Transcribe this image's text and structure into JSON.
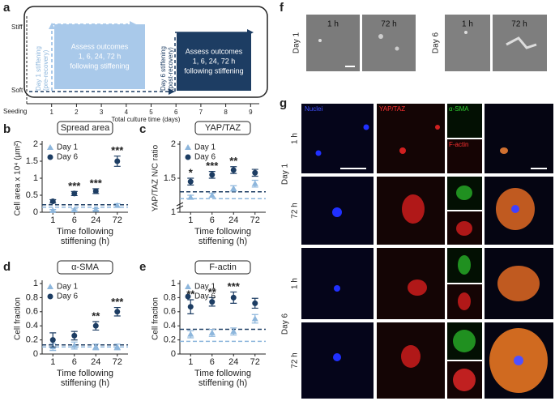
{
  "panel_labels": [
    "a",
    "b",
    "c",
    "d",
    "e",
    "f",
    "g"
  ],
  "panel_a": {
    "stiff": "Stiff",
    "soft": "Soft",
    "seeding": "Seeding",
    "ticks": [
      1,
      2,
      3,
      4,
      5,
      6,
      7,
      8,
      9
    ],
    "xlabel": "Total culture time (days)",
    "day1_label": [
      "Day 1 stiffening",
      "(pre-recovery)"
    ],
    "day1_box": [
      "Assess outcomes",
      "1, 6, 24, 72 h",
      "following stiffening"
    ],
    "day6_label": [
      "Day 6 stiffening",
      "(post-recovery)"
    ],
    "day6_box": [
      "Assess outcomes",
      "1, 6, 24, 72 h",
      "following stiffening"
    ]
  },
  "chart_data": [
    {
      "type": "scatter",
      "title": "Spread area",
      "ylabel": "Cell area x 10⁴ (μm²)",
      "xlabel": [
        "Time following",
        "stiffening (h)"
      ],
      "categories": [
        "1",
        "6",
        "24",
        "72"
      ],
      "ylim": [
        0,
        2
      ],
      "yticks": [
        0,
        0.5,
        1,
        1.5,
        2
      ],
      "y_break": false,
      "legend": "upper left",
      "series": [
        {
          "name": "Day 1",
          "color": "#8db6dc",
          "marker": "triangle",
          "values": [
            0.05,
            0.07,
            0.08,
            0.2
          ],
          "errors": [
            0.03,
            0.03,
            0.03,
            0.05
          ],
          "baseline": 0.15
        },
        {
          "name": "Day 6",
          "color": "#1d3d63",
          "marker": "circle",
          "values": [
            0.32,
            0.55,
            0.62,
            1.5
          ],
          "errors": [
            0.05,
            0.06,
            0.07,
            0.15
          ],
          "baseline": 0.22
        }
      ],
      "annotations": [
        {
          "text": "***",
          "x": "6"
        },
        {
          "text": "***",
          "x": "24"
        },
        {
          "text": "***",
          "x": "72"
        }
      ]
    },
    {
      "type": "scatter",
      "title": "YAP/TAZ",
      "ylabel": "YAP/TAZ N/C ratio",
      "xlabel": [
        "Time following",
        "stiffening (h)"
      ],
      "categories": [
        "1",
        "6",
        "24",
        "72"
      ],
      "ylim": [
        1,
        2
      ],
      "yticks": [
        1,
        1.5,
        2
      ],
      "y_break": true,
      "legend": "upper left",
      "series": [
        {
          "name": "Day 1",
          "color": "#8db6dc",
          "marker": "triangle",
          "values": [
            1.22,
            1.25,
            1.35,
            1.42
          ],
          "errors": [
            0.03,
            0.03,
            0.04,
            0.05
          ],
          "baseline": 1.2
        },
        {
          "name": "Day 6",
          "color": "#1d3d63",
          "marker": "circle",
          "values": [
            1.45,
            1.55,
            1.62,
            1.58
          ],
          "errors": [
            0.05,
            0.05,
            0.05,
            0.05
          ],
          "baseline": 1.3
        }
      ],
      "annotations": [
        {
          "text": "*",
          "x": "1"
        },
        {
          "text": "***",
          "x": "6"
        },
        {
          "text": "**",
          "x": "24"
        }
      ]
    },
    {
      "type": "scatter",
      "title": "α-SMA",
      "ylabel": "Cell fraction",
      "xlabel": [
        "Time following",
        "stiffening (h)"
      ],
      "categories": [
        "1",
        "6",
        "24",
        "72"
      ],
      "ylim": [
        0,
        1
      ],
      "yticks": [
        0,
        0.2,
        0.4,
        0.6,
        0.8,
        1
      ],
      "y_break": false,
      "legend": "upper left",
      "series": [
        {
          "name": "Day 1",
          "color": "#8db6dc",
          "marker": "triangle",
          "values": [
            0.1,
            0.12,
            0.1,
            0.1
          ],
          "errors": [
            0.05,
            0.05,
            0.04,
            0.04
          ],
          "baseline": 0.1
        },
        {
          "name": "Day 6",
          "color": "#1d3d63",
          "marker": "circle",
          "values": [
            0.2,
            0.26,
            0.4,
            0.6
          ],
          "errors": [
            0.1,
            0.06,
            0.06,
            0.06
          ],
          "baseline": 0.13
        }
      ],
      "annotations": [
        {
          "text": "**",
          "x": "24"
        },
        {
          "text": "***",
          "x": "72"
        }
      ]
    },
    {
      "type": "scatter",
      "title": "F-actin",
      "ylabel": "Cell fraction",
      "xlabel": [
        "Time following",
        "stiffening (h)"
      ],
      "categories": [
        "1",
        "6",
        "24",
        "72"
      ],
      "ylim": [
        0,
        1
      ],
      "yticks": [
        0,
        0.2,
        0.4,
        0.6,
        0.8,
        1
      ],
      "y_break": false,
      "legend": "upper left",
      "series": [
        {
          "name": "Day 1",
          "color": "#8db6dc",
          "marker": "triangle",
          "values": [
            0.28,
            0.3,
            0.32,
            0.5
          ],
          "errors": [
            0.05,
            0.05,
            0.05,
            0.06
          ],
          "baseline": 0.18
        },
        {
          "name": "Day 6",
          "color": "#1d3d63",
          "marker": "circle",
          "values": [
            0.67,
            0.74,
            0.8,
            0.72
          ],
          "errors": [
            0.1,
            0.06,
            0.08,
            0.07
          ],
          "baseline": 0.35
        }
      ],
      "annotations": [
        {
          "text": "**",
          "x": "1"
        },
        {
          "text": "**",
          "x": "6"
        },
        {
          "text": "***",
          "x": "24"
        }
      ]
    }
  ],
  "panel_f": {
    "columns": [
      "1 h",
      "72 h",
      "1 h",
      "72 h"
    ],
    "rows": [
      "Day 1",
      "Day 6"
    ]
  },
  "panel_g": {
    "channels": [
      "Nuclei",
      "YAP/TAZ",
      "α-SMA",
      "F-actin"
    ],
    "groups": [
      "Day 1",
      "Day 6"
    ],
    "times": [
      "1 h",
      "72 h",
      "1 h",
      "72 h"
    ]
  }
}
